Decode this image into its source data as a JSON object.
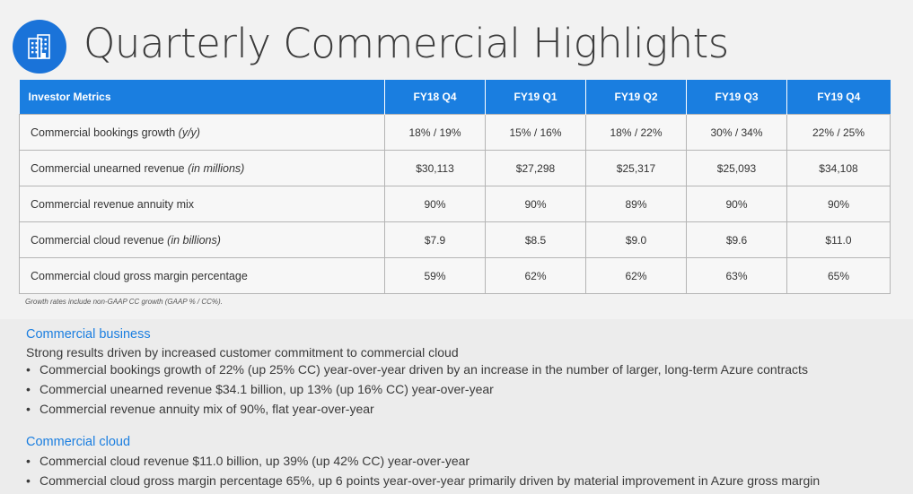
{
  "header": {
    "title": "Quarterly Commercial Highlights",
    "icon": "office-building-icon",
    "accent_color": "#1a73d9"
  },
  "table": {
    "columns": [
      "Investor Metrics",
      "FY18 Q4",
      "FY19 Q1",
      "FY19 Q2",
      "FY19 Q3",
      "FY19 Q4"
    ],
    "rows": [
      {
        "label": "Commercial bookings growth",
        "qualifier": "(y/y)",
        "values": [
          "18% / 19%",
          "15% / 16%",
          "18% / 22%",
          "30% / 34%",
          "22% / 25%"
        ]
      },
      {
        "label": "Commercial unearned revenue",
        "qualifier": "(in millions)",
        "values": [
          "$30,113",
          "$27,298",
          "$25,317",
          "$25,093",
          "$34,108"
        ]
      },
      {
        "label": "Commercial revenue annuity mix",
        "qualifier": "",
        "values": [
          "90%",
          "90%",
          "89%",
          "90%",
          "90%"
        ]
      },
      {
        "label": "Commercial cloud revenue",
        "qualifier": "(in billions)",
        "values": [
          "$7.9",
          "$8.5",
          "$9.0",
          "$9.6",
          "$11.0"
        ]
      },
      {
        "label": "Commercial cloud gross margin percentage",
        "qualifier": "",
        "values": [
          "59%",
          "62%",
          "62%",
          "63%",
          "65%"
        ]
      }
    ],
    "header_color": "#1a7ee0"
  },
  "footnote": "Growth rates include non-GAAP CC growth (GAAP % / CC%).",
  "sections": [
    {
      "heading": "Commercial business",
      "subheading": "Strong results driven by increased customer commitment to commercial cloud",
      "bullets": [
        "Commercial bookings growth of 22% (up 25% CC) year-over-year driven by an increase in the number of larger, long-term Azure contracts",
        "Commercial unearned revenue $34.1 billion, up 13% (up 16% CC) year-over-year",
        "Commercial revenue annuity mix of 90%, flat year-over-year"
      ]
    },
    {
      "heading": "Commercial cloud",
      "bullets": [
        "Commercial cloud revenue $11.0 billion, up 39% (up 42% CC) year-over-year",
        "Commercial cloud gross margin percentage 65%, up 6 points year-over-year primarily driven by material improvement in Azure gross margin"
      ]
    }
  ]
}
